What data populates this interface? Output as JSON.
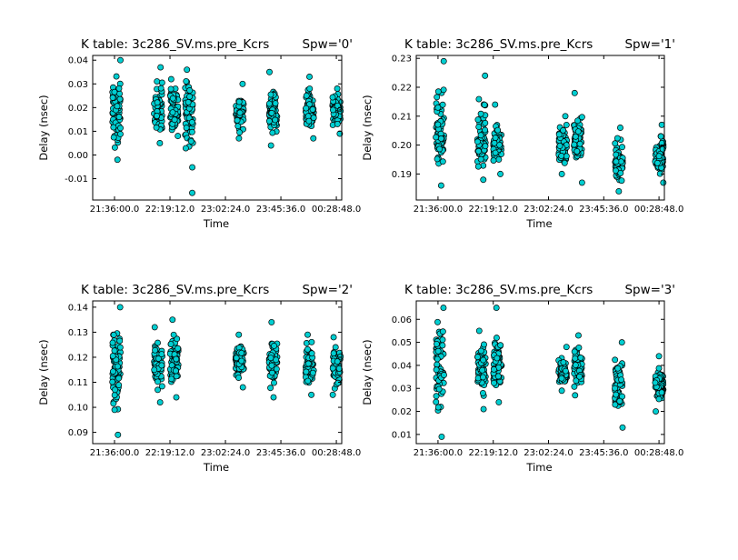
{
  "chart_data": [
    {
      "type": "scatter",
      "title": "K table: 3c286_SV.ms.pre_Kcrs",
      "spw_label": "Spw='0'",
      "xlabel": "Time",
      "ylabel": "Delay (nsec)",
      "xticks": [
        "21:36:00.0",
        "22:19:12.0",
        "23:02:24.0",
        "23:45:36.0",
        "00:28:48.0"
      ],
      "yticks": [
        "-0.01",
        "0.00",
        "0.01",
        "0.02",
        "0.03",
        "0.04"
      ],
      "xlim": [
        "21:19:00",
        "00:33:00"
      ],
      "ylim": [
        -0.019,
        0.042
      ],
      "marker_color": "#00ced1",
      "groups": [
        {
          "time": "21:37:30",
          "y_min": -0.002,
          "y_max": 0.04,
          "center": 0.019
        },
        {
          "time": "22:10:00",
          "y_min": 0.005,
          "y_max": 0.037,
          "center": 0.019
        },
        {
          "time": "22:22:30",
          "y_min": 0.008,
          "y_max": 0.032,
          "center": 0.019
        },
        {
          "time": "22:34:00",
          "y_min": -0.016,
          "y_max": 0.036,
          "center": 0.018
        },
        {
          "time": "23:13:30",
          "y_min": 0.007,
          "y_max": 0.03,
          "center": 0.018
        },
        {
          "time": "23:39:30",
          "y_min": 0.004,
          "y_max": 0.035,
          "center": 0.018
        },
        {
          "time": "00:08:00",
          "y_min": 0.007,
          "y_max": 0.033,
          "center": 0.019
        },
        {
          "time": "00:29:00",
          "y_min": 0.009,
          "y_max": 0.028,
          "center": 0.019
        }
      ]
    },
    {
      "type": "scatter",
      "title": "K table: 3c286_SV.ms.pre_Kcrs",
      "spw_label": "Spw='1'",
      "xlabel": "Time",
      "ylabel": "Delay (nsec)",
      "xticks": [
        "21:36:00.0",
        "22:19:12.0",
        "23:02:24.0",
        "23:45:36.0",
        "00:28:48.0"
      ],
      "yticks": [
        "0.19",
        "0.20",
        "0.21",
        "0.22",
        "0.23"
      ],
      "xlim": [
        "21:19:00",
        "00:33:00"
      ],
      "ylim": [
        0.181,
        0.231
      ],
      "marker_color": "#00ced1",
      "groups": [
        {
          "time": "21:37:30",
          "y_min": 0.186,
          "y_max": 0.229,
          "center": 0.204
        },
        {
          "time": "22:10:00",
          "y_min": 0.188,
          "y_max": 0.224,
          "center": 0.201
        },
        {
          "time": "22:22:30",
          "y_min": 0.19,
          "y_max": 0.214,
          "center": 0.201
        },
        {
          "time": "23:13:30",
          "y_min": 0.19,
          "y_max": 0.21,
          "center": 0.199
        },
        {
          "time": "23:25:30",
          "y_min": 0.187,
          "y_max": 0.218,
          "center": 0.202
        },
        {
          "time": "23:57:30",
          "y_min": 0.184,
          "y_max": 0.206,
          "center": 0.193
        },
        {
          "time": "00:29:00",
          "y_min": 0.187,
          "y_max": 0.207,
          "center": 0.196
        }
      ]
    },
    {
      "type": "scatter",
      "title": "K table: 3c286_SV.ms.pre_Kcrs",
      "spw_label": "Spw='2'",
      "xlabel": "Time",
      "ylabel": "Delay (nsec)",
      "xticks": [
        "21:36:00.0",
        "22:19:12.0",
        "23:02:24.0",
        "23:45:36.0",
        "00:28:48.0"
      ],
      "yticks": [
        "0.09",
        "0.10",
        "0.11",
        "0.12",
        "0.13",
        "0.14"
      ],
      "xlim": [
        "21:19:00",
        "00:33:00"
      ],
      "ylim": [
        0.0855,
        0.1425
      ],
      "marker_color": "#00ced1",
      "groups": [
        {
          "time": "21:37:30",
          "y_min": 0.089,
          "y_max": 0.14,
          "center": 0.119
        },
        {
          "time": "22:10:00",
          "y_min": 0.102,
          "y_max": 0.132,
          "center": 0.117
        },
        {
          "time": "22:22:30",
          "y_min": 0.104,
          "y_max": 0.135,
          "center": 0.118
        },
        {
          "time": "23:13:30",
          "y_min": 0.108,
          "y_max": 0.129,
          "center": 0.118
        },
        {
          "time": "23:39:30",
          "y_min": 0.104,
          "y_max": 0.134,
          "center": 0.118
        },
        {
          "time": "00:08:00",
          "y_min": 0.105,
          "y_max": 0.129,
          "center": 0.116
        },
        {
          "time": "00:29:00",
          "y_min": 0.105,
          "y_max": 0.128,
          "center": 0.116
        }
      ]
    },
    {
      "type": "scatter",
      "title": "K table: 3c286_SV.ms.pre_Kcrs",
      "spw_label": "Spw='3'",
      "xlabel": "Time",
      "ylabel": "Delay (nsec)",
      "xticks": [
        "21:36:00.0",
        "22:19:12.0",
        "23:02:24.0",
        "23:45:36.0",
        "00:28:48.0"
      ],
      "yticks": [
        "0.01",
        "0.02",
        "0.03",
        "0.04",
        "0.05",
        "0.06"
      ],
      "xlim": [
        "21:19:00",
        "00:33:00"
      ],
      "ylim": [
        0.006,
        0.068
      ],
      "marker_color": "#00ced1",
      "groups": [
        {
          "time": "21:37:30",
          "y_min": 0.009,
          "y_max": 0.065,
          "center": 0.04
        },
        {
          "time": "22:10:00",
          "y_min": 0.021,
          "y_max": 0.055,
          "center": 0.039
        },
        {
          "time": "22:22:30",
          "y_min": 0.024,
          "y_max": 0.065,
          "center": 0.039
        },
        {
          "time": "23:13:30",
          "y_min": 0.029,
          "y_max": 0.048,
          "center": 0.037
        },
        {
          "time": "23:25:30",
          "y_min": 0.027,
          "y_max": 0.053,
          "center": 0.039
        },
        {
          "time": "23:57:30",
          "y_min": 0.013,
          "y_max": 0.05,
          "center": 0.03
        },
        {
          "time": "00:29:00",
          "y_min": 0.02,
          "y_max": 0.044,
          "center": 0.032
        }
      ]
    }
  ]
}
